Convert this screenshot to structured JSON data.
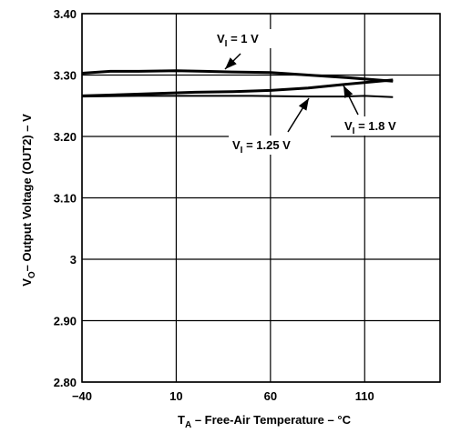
{
  "chart_data": {
    "type": "line",
    "xlabel_main": "T",
    "xlabel_sub": "A",
    "xlabel_rest": " – Free-Air Temperature – °C",
    "ylabel_main": "V",
    "ylabel_sub": "O",
    "ylabel_rest": "– Output Voltage (OUT2) – V",
    "xlim": [
      -40,
      150
    ],
    "ylim": [
      2.8,
      3.4
    ],
    "xticks": [
      -40,
      10,
      60,
      110
    ],
    "xtick_labels": [
      "−40",
      "10",
      "60",
      "110"
    ],
    "yticks": [
      2.8,
      2.9,
      3.0,
      3.1,
      3.2,
      3.3,
      3.4
    ],
    "ytick_labels": [
      "2.80",
      "2.90",
      "3",
      "3.10",
      "3.20",
      "3.30",
      "3.40"
    ],
    "grid": true,
    "series": [
      {
        "name": "VI = 1 V",
        "x": [
          -40,
          -25,
          -10,
          10,
          25,
          40,
          60,
          80,
          100,
          125
        ],
        "y": [
          3.303,
          3.306,
          3.306,
          3.307,
          3.306,
          3.305,
          3.304,
          3.3,
          3.296,
          3.29
        ]
      },
      {
        "name": "VI = 1.25 V",
        "x": [
          -40,
          -20,
          0,
          20,
          40,
          60,
          80,
          100,
          125
        ],
        "y": [
          3.266,
          3.268,
          3.27,
          3.272,
          3.273,
          3.275,
          3.279,
          3.285,
          3.292
        ]
      },
      {
        "name": "VI = 1.8 V",
        "x": [
          -40,
          -10,
          20,
          50,
          80,
          100,
          110,
          125
        ],
        "y": [
          3.265,
          3.266,
          3.266,
          3.266,
          3.265,
          3.265,
          3.266,
          3.264
        ]
      }
    ],
    "annotations": [
      {
        "main": "V",
        "sub": "I",
        "rest": " = 1 V"
      },
      {
        "main": "V",
        "sub": "I",
        "rest": " = 1.25 V"
      },
      {
        "main": "V",
        "sub": "I",
        "rest": " = 1.8 V"
      }
    ]
  }
}
